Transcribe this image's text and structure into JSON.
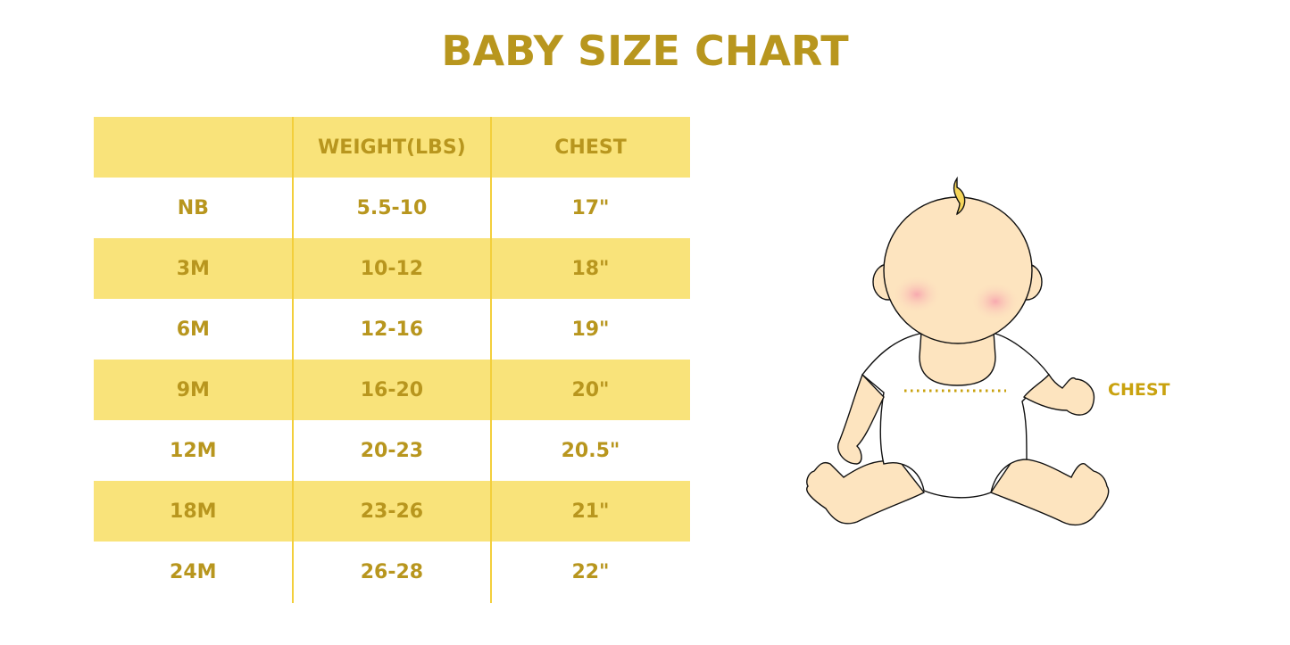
{
  "title": "BABY SIZE CHART",
  "table": {
    "headers": [
      "",
      "WEIGHT(LBS)",
      "CHEST"
    ],
    "rows": [
      [
        "NB",
        "5.5-10",
        "17\""
      ],
      [
        "3M",
        "10-12",
        "18\""
      ],
      [
        "6M",
        "12-16",
        "19\""
      ],
      [
        "9M",
        "16-20",
        "20\""
      ],
      [
        "12M",
        "20-23",
        "20.5\""
      ],
      [
        "18M",
        "23-26",
        "21\""
      ],
      [
        "24M",
        "26-28",
        "22\""
      ]
    ]
  },
  "illustration": {
    "chest_label": "CHEST"
  },
  "colors": {
    "text": "#b8961e",
    "stripe": "#f9e37a",
    "skin": "#fde4bf"
  }
}
